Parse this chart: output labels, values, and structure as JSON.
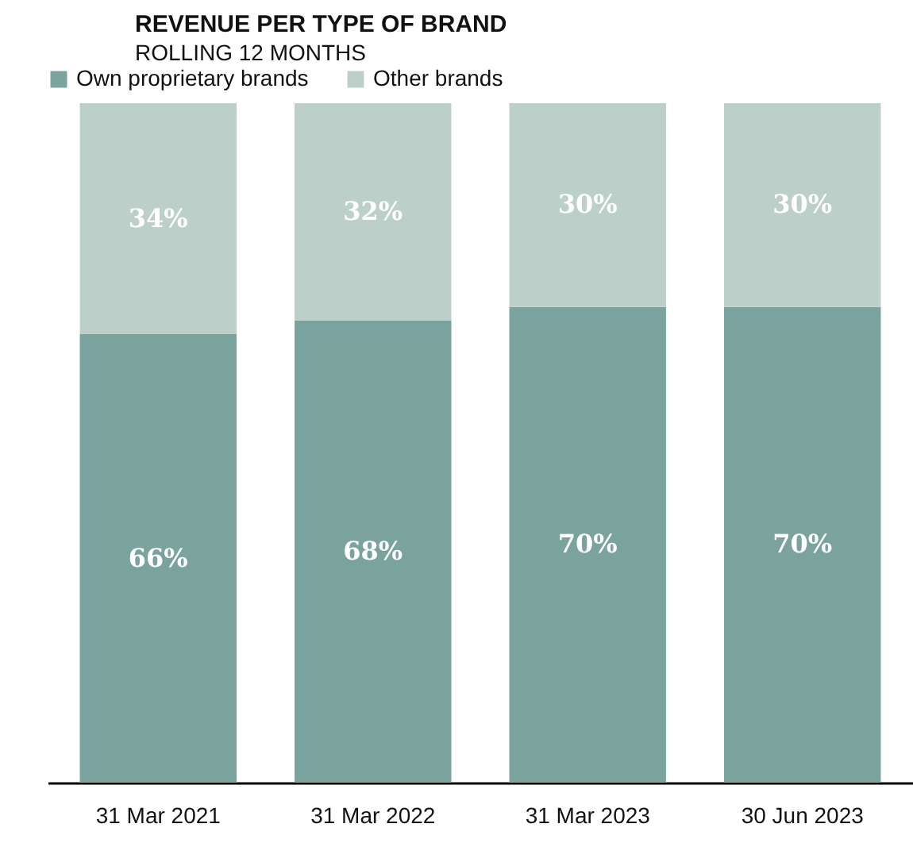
{
  "chart_data": {
    "type": "bar",
    "title": "REVENUE PER TYPE OF BRAND",
    "subtitle": "ROLLING 12 MONTHS",
    "categories": [
      "31 Mar 2021",
      "31 Mar 2022",
      "31 Mar 2023",
      "30 Jun 2023"
    ],
    "stacked": true,
    "legend": "top left",
    "grid": false,
    "series": [
      {
        "name": "Own proprietary brands",
        "color": "#7aa39d",
        "values": [
          66,
          68,
          70,
          70
        ],
        "value_labels": [
          "66%",
          "68%",
          "70%",
          "70%"
        ]
      },
      {
        "name": "Other brands",
        "color": "#bccfc9",
        "values": [
          34,
          32,
          30,
          30
        ],
        "value_labels": [
          "34%",
          "32%",
          "30%",
          "30%"
        ]
      }
    ]
  }
}
